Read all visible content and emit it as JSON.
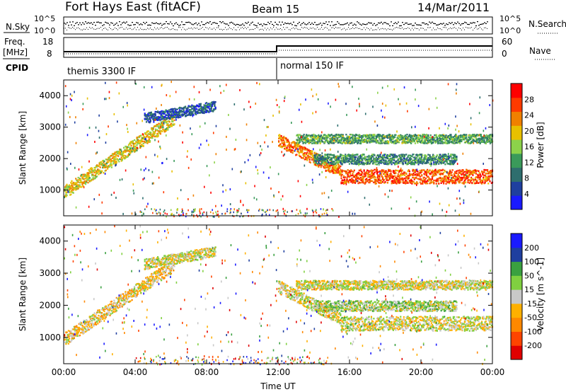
{
  "header": {
    "title": "Fort Hays East (fitACF)",
    "beam": "Beam 15",
    "date": "14/Mar/2011"
  },
  "left_labels": {
    "nsky": "N.Sky",
    "freq": "Freq.",
    "freq_unit": "[MHz]",
    "cpid": "CPID"
  },
  "right_labels": {
    "nsearch": "N.Search",
    "nave": "Nave"
  },
  "noise_axis": {
    "left_ticks": [
      "10^5",
      "10^0"
    ],
    "right_ticks": [
      "10^5",
      "10^0"
    ]
  },
  "freq_axis": {
    "left_ticks": [
      "18",
      "8"
    ],
    "right_ticks": [
      "60",
      "0"
    ]
  },
  "cpid_labels": [
    "themis 3300 IF",
    "normal 150 IF"
  ],
  "x_axis": {
    "label": "Time UT",
    "ticks": [
      "00:00",
      "04:00",
      "08:00",
      "12:00",
      "16:00",
      "20:00",
      "00:00"
    ],
    "range_hours": [
      0,
      24
    ]
  },
  "colors": {
    "power": [
      "#1a1aff",
      "#1f3f9f",
      "#2e6e6e",
      "#3a9a5a",
      "#8cd24a",
      "#e8c000",
      "#f08000",
      "#ff3a00",
      "#ff0000"
    ],
    "velocity": [
      "#e00000",
      "#ff4400",
      "#ff8800",
      "#ffb000",
      "#c8c8c8",
      "#80d040",
      "#3aa040",
      "#1f3f9f",
      "#1a1aff"
    ]
  },
  "chart_data": [
    {
      "type": "heatmap",
      "panel": "power",
      "ylabel": "Slant Range [km]",
      "ylim": [
        180,
        4500
      ],
      "yticks": [
        1000,
        2000,
        3000,
        4000
      ],
      "xlim": [
        0,
        24
      ],
      "colorbar": {
        "label": "Power [dB]",
        "ticks": [
          "28",
          "24",
          "20",
          "16",
          "12",
          "8",
          "4"
        ],
        "range": [
          0,
          30
        ]
      },
      "bands": [
        {
          "start_h": 0,
          "end_h": 6.2,
          "range_start_km": 950,
          "range_end_km": 3300,
          "width_km": 260,
          "level_db": 18
        },
        {
          "start_h": 4.5,
          "end_h": 8.5,
          "range_start_km": 3300,
          "range_end_km": 3700,
          "width_km": 200,
          "level_db": 6
        },
        {
          "start_h": 12,
          "end_h": 15.5,
          "range_start_km": 2600,
          "range_end_km": 1600,
          "width_km": 250,
          "level_db": 22
        },
        {
          "start_h": 15.5,
          "end_h": 24,
          "range_start_km": 1450,
          "range_end_km": 1450,
          "width_km": 280,
          "level_db": 24
        },
        {
          "start_h": 13,
          "end_h": 24,
          "range_start_km": 2650,
          "range_end_km": 2650,
          "width_km": 180,
          "level_db": 12
        },
        {
          "start_h": 14,
          "end_h": 22,
          "range_start_km": 2000,
          "range_end_km": 2000,
          "width_km": 200,
          "level_db": 10
        }
      ]
    },
    {
      "type": "heatmap",
      "panel": "velocity",
      "ylabel": "Slant Range [km]",
      "ylim": [
        180,
        4500
      ],
      "yticks": [
        1000,
        2000,
        3000,
        4000
      ],
      "xlim": [
        0,
        24
      ],
      "colorbar": {
        "label": "Velocity [m s^-1]",
        "ticks": [
          "200",
          "100",
          "50",
          "15",
          "-15",
          "-50",
          "-100",
          "-200"
        ],
        "range": [
          -250,
          250
        ]
      },
      "bands": [
        {
          "start_h": 0,
          "end_h": 6.2,
          "range_start_km": 950,
          "range_end_km": 3300,
          "width_km": 260,
          "level_ms": -30
        },
        {
          "start_h": 4.5,
          "end_h": 8.5,
          "range_start_km": 3300,
          "range_end_km": 3700,
          "width_km": 200,
          "level_ms": 0
        },
        {
          "start_h": 12,
          "end_h": 15.5,
          "range_start_km": 2600,
          "range_end_km": 1600,
          "width_km": 250,
          "level_ms": 0
        },
        {
          "start_h": 15.5,
          "end_h": 24,
          "range_start_km": 1450,
          "range_end_km": 1450,
          "width_km": 280,
          "level_ms": 0
        },
        {
          "start_h": 13,
          "end_h": 24,
          "range_start_km": 2650,
          "range_end_km": 2650,
          "width_km": 180,
          "level_ms": 0
        },
        {
          "start_h": 14,
          "end_h": 22,
          "range_start_km": 2000,
          "range_end_km": 2000,
          "width_km": 200,
          "level_ms": 30
        }
      ]
    }
  ]
}
